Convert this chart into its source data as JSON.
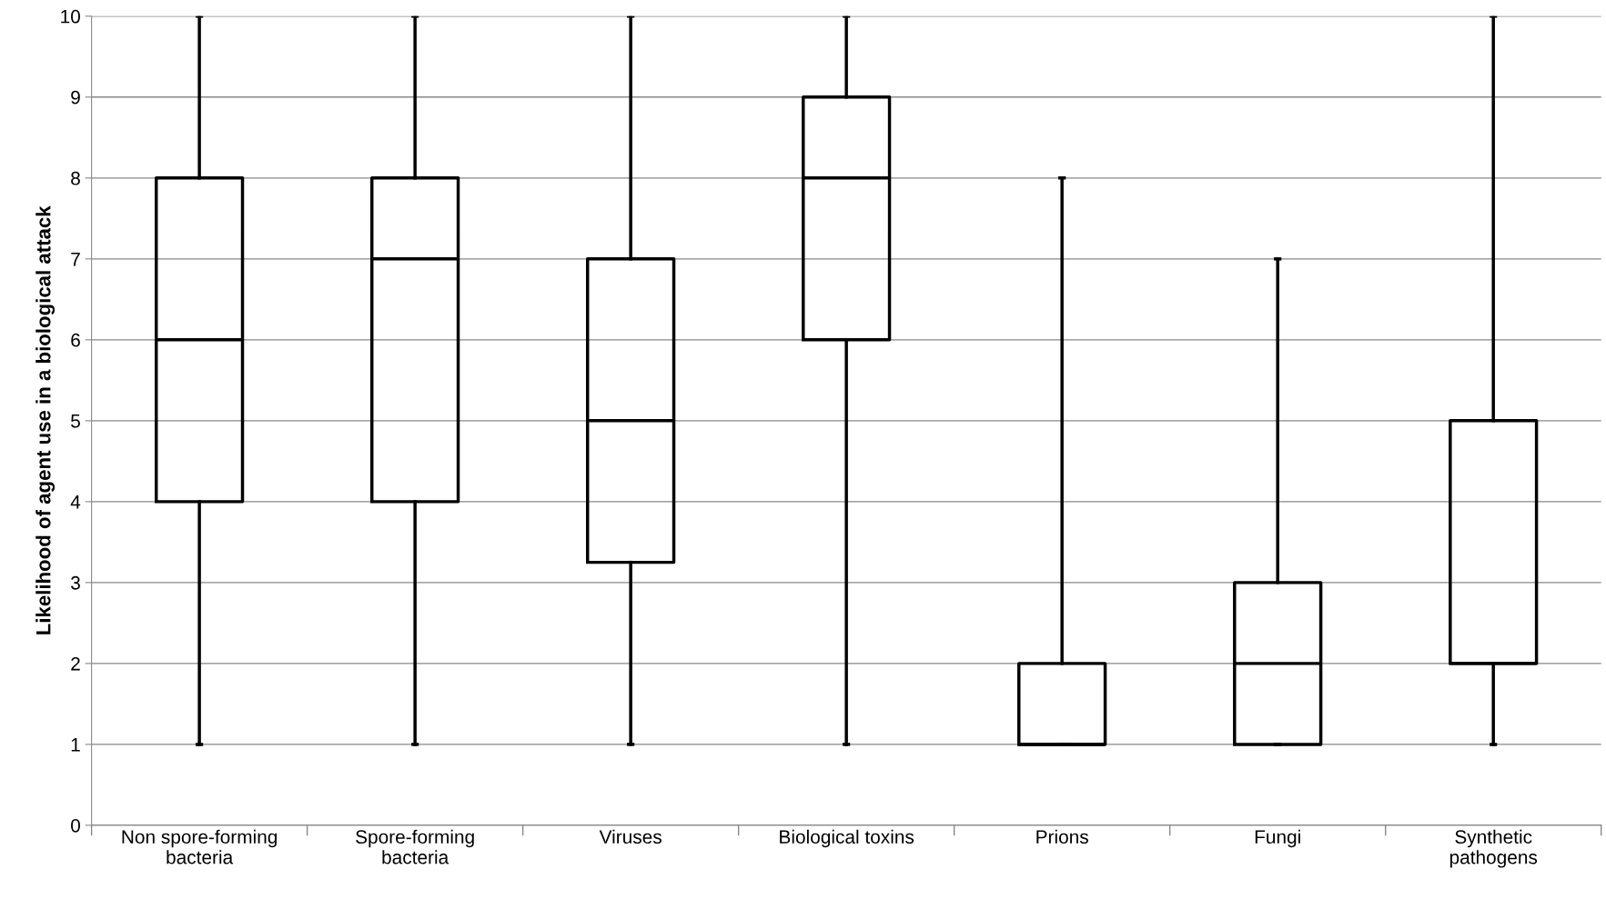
{
  "chart_data": {
    "type": "box",
    "ylabel": "Likelihood of agent use in a biological attack",
    "categories": [
      "Non spore-forming\nbacteria",
      "Spore-forming\nbacteria",
      "Viruses",
      "Biological toxins",
      "Prions",
      "Fungi",
      "Synthetic\npathogens"
    ],
    "boxes": [
      {
        "low": 1,
        "q1": 4,
        "median": 6,
        "q3": 8,
        "high": 10
      },
      {
        "low": 1,
        "q1": 4,
        "median": 7,
        "q3": 8,
        "high": 10
      },
      {
        "low": 1,
        "q1": 3.25,
        "median": 5,
        "q3": 7,
        "high": 10
      },
      {
        "low": 1,
        "q1": 6,
        "median": 8,
        "q3": 9,
        "high": 10
      },
      {
        "low": 1,
        "q1": 1,
        "median": 1,
        "q3": 2,
        "high": 8
      },
      {
        "low": 1,
        "q1": 1,
        "median": 2,
        "q3": 3,
        "high": 7
      },
      {
        "low": 1,
        "q1": 2,
        "median": 2,
        "q3": 5,
        "high": 10
      }
    ],
    "color": "#000000",
    "ylim": [
      0,
      10
    ],
    "yticks": [
      0,
      1,
      2,
      3,
      4,
      5,
      6,
      7,
      8,
      9,
      10
    ],
    "grid": "y"
  }
}
